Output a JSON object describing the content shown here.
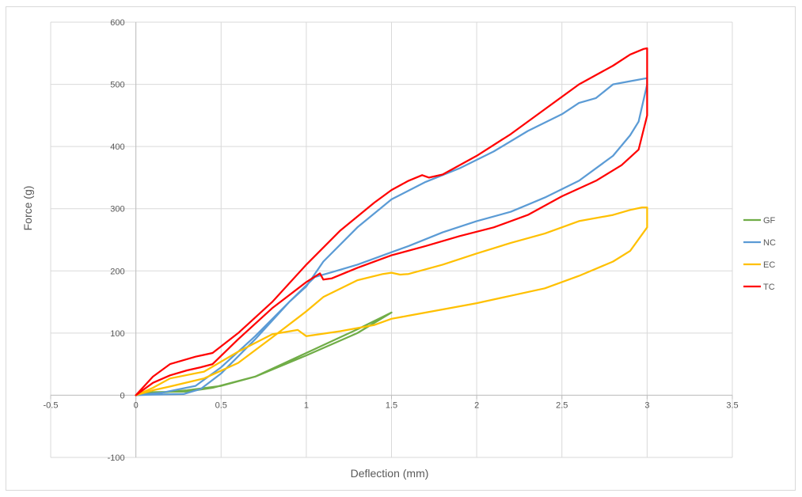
{
  "chart_data": {
    "type": "line",
    "title": "",
    "xlabel": "Deflection (mm)",
    "ylabel": "Force (g)",
    "xlim": [
      -0.5,
      3.5
    ],
    "ylim": [
      -100,
      600
    ],
    "xticks": [
      -0.5,
      0,
      0.5,
      1,
      1.5,
      2,
      2.5,
      3,
      3.5
    ],
    "yticks": [
      -100,
      0,
      100,
      200,
      300,
      400,
      500,
      600
    ],
    "grid": true,
    "legend_position": "right",
    "series": [
      {
        "name": "GF",
        "color": "#70ad47",
        "x": [
          0,
          0.1,
          0.3,
          0.45,
          0.7,
          1.0,
          1.3,
          1.5,
          1.3,
          1.0,
          0.7,
          0.5,
          0.3,
          0.1,
          0
        ],
        "y": [
          0,
          5,
          6,
          12,
          30,
          68,
          106,
          133,
          100,
          64,
          30,
          15,
          8,
          3,
          0
        ]
      },
      {
        "name": "NC",
        "color": "#5b9bd5",
        "x": [
          0,
          0.1,
          0.28,
          0.38,
          0.5,
          0.7,
          0.9,
          1.0,
          1.1,
          1.3,
          1.5,
          1.7,
          1.9,
          2.1,
          2.3,
          2.5,
          2.6,
          2.7,
          2.8,
          2.9,
          3.0,
          3.0,
          2.95,
          2.9,
          2.8,
          2.6,
          2.4,
          2.2,
          2.0,
          1.8,
          1.6,
          1.5,
          1.4,
          1.3,
          1.15,
          1.05,
          0.9,
          0.7,
          0.5,
          0.35,
          0.15,
          0
        ],
        "y": [
          0,
          1,
          2,
          10,
          35,
          90,
          150,
          175,
          215,
          270,
          315,
          343,
          365,
          392,
          425,
          452,
          470,
          478,
          500,
          505,
          510,
          500,
          440,
          418,
          385,
          345,
          318,
          295,
          280,
          262,
          240,
          230,
          220,
          210,
          198,
          190,
          150,
          95,
          45,
          15,
          4,
          0
        ]
      },
      {
        "name": "EC",
        "color": "#ffc000",
        "x": [
          0,
          0.1,
          0.2,
          0.4,
          0.6,
          0.8,
          0.95,
          1.0,
          1.2,
          1.4,
          1.5,
          1.6,
          1.8,
          2.0,
          2.2,
          2.4,
          2.6,
          2.8,
          2.9,
          3.0,
          3.0,
          2.97,
          2.9,
          2.8,
          2.6,
          2.4,
          2.2,
          2.0,
          1.8,
          1.6,
          1.55,
          1.5,
          1.45,
          1.3,
          1.1,
          1.0,
          0.8,
          0.6,
          0.4,
          0.2,
          0.1,
          0
        ],
        "y": [
          0,
          12,
          27,
          38,
          70,
          98,
          105,
          95,
          103,
          113,
          123,
          128,
          138,
          148,
          160,
          172,
          192,
          215,
          232,
          270,
          302,
          302,
          298,
          290,
          280,
          260,
          245,
          228,
          210,
          195,
          194,
          197,
          195,
          185,
          158,
          135,
          93,
          52,
          27,
          14,
          8,
          0
        ]
      },
      {
        "name": "TC",
        "color": "#ff0000",
        "x": [
          0,
          0.1,
          0.2,
          0.3,
          0.38,
          0.45,
          0.6,
          0.8,
          1.0,
          1.08,
          1.1,
          1.15,
          1.3,
          1.5,
          1.7,
          1.9,
          2.1,
          2.3,
          2.5,
          2.7,
          2.85,
          2.95,
          3.0,
          3.0,
          2.98,
          2.9,
          2.8,
          2.6,
          2.4,
          2.2,
          2.0,
          1.8,
          1.72,
          1.68,
          1.6,
          1.5,
          1.4,
          1.2,
          1.0,
          0.8,
          0.6,
          0.45,
          0.35,
          0.2,
          0.1,
          0
        ],
        "y": [
          0,
          20,
          32,
          40,
          45,
          50,
          90,
          140,
          182,
          196,
          186,
          188,
          205,
          225,
          240,
          256,
          270,
          290,
          320,
          345,
          370,
          395,
          450,
          558,
          557,
          548,
          530,
          500,
          460,
          420,
          385,
          355,
          350,
          354,
          345,
          330,
          310,
          265,
          210,
          150,
          100,
          68,
          62,
          50,
          30,
          0
        ]
      }
    ]
  }
}
